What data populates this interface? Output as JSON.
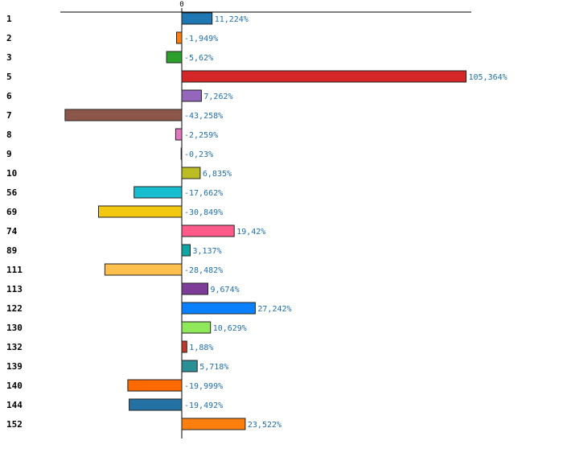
{
  "chart_data": {
    "type": "bar",
    "orientation": "horizontal",
    "title": "",
    "xlabel": "",
    "ylabel": "",
    "zero_tick_label": "0",
    "xlim": [
      -62,
      108
    ],
    "categories": [
      "1",
      "2",
      "3",
      "5",
      "6",
      "7",
      "8",
      "9",
      "10",
      "56",
      "69",
      "74",
      "89",
      "111",
      "113",
      "122",
      "130",
      "132",
      "139",
      "140",
      "144",
      "152"
    ],
    "values": [
      11.224,
      -1.949,
      -5.62,
      105.364,
      7.262,
      -43.258,
      -2.259,
      -0.23,
      6.835,
      -17.662,
      -30.849,
      19.42,
      3.137,
      -28.482,
      9.674,
      27.242,
      10.629,
      1.88,
      5.718,
      -19.999,
      -19.492,
      23.522
    ],
    "value_labels": [
      "11,224%",
      "-1,949%",
      "-5,62%",
      "105,364%",
      "7,262%",
      "-43,258%",
      "-2,259%",
      "-0,23%",
      "6,835%",
      "-17,662%",
      "-30,849%",
      "19,42%",
      "3,137%",
      "-28,482%",
      "9,674%",
      "27,242%",
      "10,629%",
      "1,88%",
      "5,718%",
      "-19,999%",
      "-19,492%",
      "23,522%"
    ],
    "colors": [
      "#1f77b4",
      "#ff7f0e",
      "#2ca02c",
      "#d62728",
      "#9467bd",
      "#8c564b",
      "#e377c2",
      "#7f7f7f",
      "#bcbd22",
      "#17becf",
      "#f2c811",
      "#ff5a8a",
      "#10a5a5",
      "#ffc04d",
      "#7d3c98",
      "#0a80ff",
      "#8fe85a",
      "#c0392b",
      "#2a8f96",
      "#ff6a00",
      "#2471a3",
      "#ff7f0e"
    ],
    "grid": false,
    "legend": "none"
  }
}
